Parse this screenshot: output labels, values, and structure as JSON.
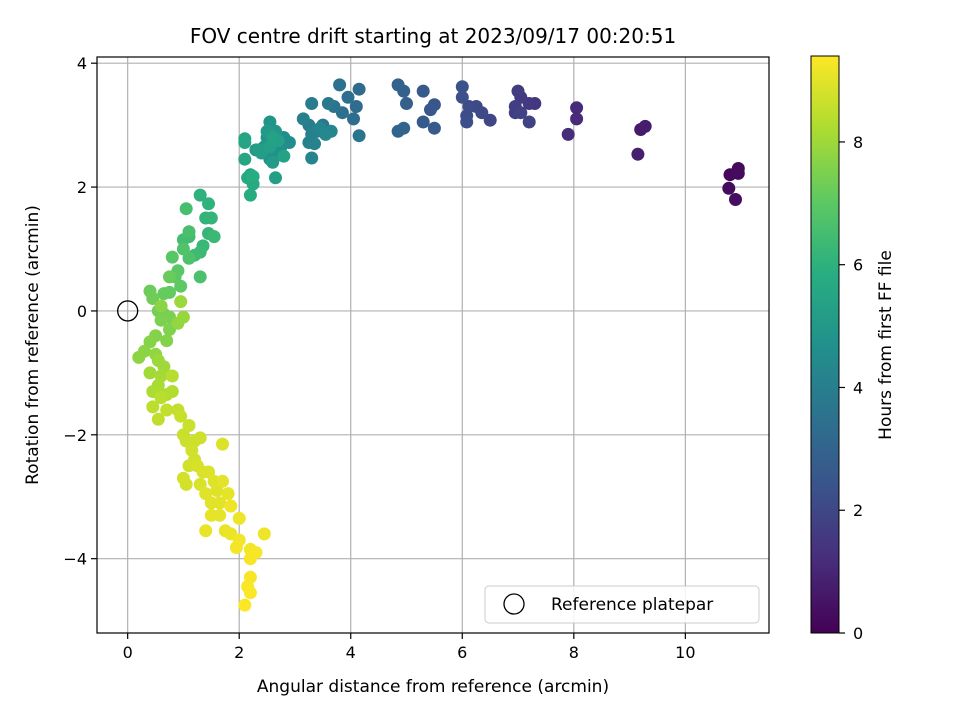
{
  "chart_data": {
    "type": "scatter",
    "title": "FOV centre drift starting at 2023/09/17 00:20:51",
    "xlabel": "Angular distance from reference (arcmin)",
    "ylabel": "Rotation from reference (arcmin)",
    "xlim": [
      -0.55,
      11.5
    ],
    "ylim": [
      -5.2,
      4.1
    ],
    "xticks": [
      "0",
      "2",
      "4",
      "6",
      "8",
      "10"
    ],
    "xtick_values": [
      0,
      2,
      4,
      6,
      8,
      10
    ],
    "yticks": [
      "−4",
      "−2",
      "0",
      "2",
      "4"
    ],
    "ytick_values": [
      -4,
      -2,
      0,
      2,
      4
    ],
    "grid": true,
    "colormap": "viridis",
    "colorbar": {
      "label": "Hours from first FF file",
      "range": [
        0,
        9.4
      ],
      "ticks": [
        "0",
        "2",
        "4",
        "6",
        "8"
      ],
      "tick_values": [
        0,
        2,
        4,
        6,
        8
      ]
    },
    "reference_point": {
      "x": 0,
      "y": 0,
      "label": "Reference platepar"
    },
    "legend": {
      "placement": "lower-right",
      "entries": [
        "Reference platepar"
      ]
    },
    "points": [
      [
        10.8,
        2.2,
        0.2
      ],
      [
        10.95,
        2.3,
        0.25
      ],
      [
        10.95,
        2.22,
        0.28
      ],
      [
        10.78,
        1.98,
        0.3
      ],
      [
        10.9,
        1.8,
        0.35
      ],
      [
        9.2,
        2.93,
        0.7
      ],
      [
        9.28,
        2.98,
        0.75
      ],
      [
        9.15,
        2.53,
        0.8
      ],
      [
        8.05,
        3.28,
        1.1
      ],
      [
        8.05,
        3.1,
        1.15
      ],
      [
        7.9,
        2.85,
        1.2
      ],
      [
        7.3,
        3.35,
        1.5
      ],
      [
        7.2,
        3.35,
        1.55
      ],
      [
        7.05,
        3.45,
        1.6
      ],
      [
        7.0,
        3.55,
        1.65
      ],
      [
        6.95,
        3.3,
        1.7
      ],
      [
        6.95,
        3.2,
        1.75
      ],
      [
        7.05,
        3.2,
        1.8
      ],
      [
        7.2,
        3.05,
        1.85
      ],
      [
        6.5,
        3.08,
        2.0
      ],
      [
        6.35,
        3.2,
        2.05
      ],
      [
        6.25,
        3.3,
        2.1
      ],
      [
        6.12,
        3.3,
        2.15
      ],
      [
        6.08,
        3.15,
        2.2
      ],
      [
        6.08,
        3.05,
        2.25
      ],
      [
        6.0,
        3.45,
        2.3
      ],
      [
        6.0,
        3.62,
        2.35
      ],
      [
        5.5,
        3.33,
        2.5
      ],
      [
        5.43,
        3.25,
        2.55
      ],
      [
        5.3,
        3.55,
        2.6
      ],
      [
        5.3,
        3.05,
        2.65
      ],
      [
        5.5,
        2.95,
        2.7
      ],
      [
        5.0,
        3.35,
        2.85
      ],
      [
        4.95,
        3.55,
        2.9
      ],
      [
        4.85,
        3.65,
        2.95
      ],
      [
        4.95,
        2.95,
        3.0
      ],
      [
        4.85,
        2.9,
        3.05
      ],
      [
        4.15,
        3.58,
        3.25
      ],
      [
        4.1,
        3.3,
        3.3
      ],
      [
        4.05,
        3.1,
        3.35
      ],
      [
        3.95,
        3.45,
        3.4
      ],
      [
        3.85,
        3.2,
        3.45
      ],
      [
        3.8,
        3.65,
        3.5
      ],
      [
        3.7,
        3.3,
        3.55
      ],
      [
        4.15,
        2.83,
        3.6
      ],
      [
        3.6,
        3.35,
        3.75
      ],
      [
        3.5,
        3.0,
        3.8
      ],
      [
        3.4,
        2.9,
        3.85
      ],
      [
        3.3,
        3.35,
        3.9
      ],
      [
        3.25,
        3.0,
        3.95
      ],
      [
        3.15,
        3.1,
        4.0
      ],
      [
        3.3,
        2.85,
        4.05
      ],
      [
        3.25,
        2.72,
        4.1
      ],
      [
        3.35,
        2.7,
        4.15
      ],
      [
        3.3,
        2.47,
        4.2
      ],
      [
        3.45,
        2.95,
        4.25
      ],
      [
        3.65,
        2.9,
        4.3
      ],
      [
        3.55,
        2.85,
        4.35
      ],
      [
        2.9,
        2.72,
        4.55
      ],
      [
        2.8,
        2.8,
        4.6
      ],
      [
        2.75,
        2.65,
        4.65
      ],
      [
        2.65,
        2.5,
        4.7
      ],
      [
        2.55,
        2.45,
        4.75
      ],
      [
        2.5,
        2.8,
        4.8
      ],
      [
        2.55,
        3.05,
        4.85
      ],
      [
        2.65,
        2.9,
        4.9
      ],
      [
        2.45,
        2.65,
        4.95
      ],
      [
        2.3,
        2.6,
        5.0
      ],
      [
        2.5,
        2.9,
        5.05
      ],
      [
        2.6,
        2.4,
        5.1
      ],
      [
        2.4,
        2.55,
        5.15
      ],
      [
        2.35,
        2.6,
        5.2
      ],
      [
        2.65,
        2.15,
        5.25
      ],
      [
        2.55,
        2.65,
        5.3
      ],
      [
        2.7,
        2.75,
        5.32
      ],
      [
        2.6,
        2.8,
        5.34
      ],
      [
        2.8,
        2.5,
        5.36
      ],
      [
        2.1,
        2.78,
        5.45
      ],
      [
        2.1,
        2.72,
        5.5
      ],
      [
        2.1,
        2.45,
        5.55
      ],
      [
        2.2,
        2.2,
        5.6
      ],
      [
        2.15,
        2.15,
        5.65
      ],
      [
        2.25,
        2.05,
        5.7
      ],
      [
        2.2,
        1.87,
        5.75
      ],
      [
        2.25,
        2.17,
        5.8
      ],
      [
        1.3,
        1.87,
        6.0
      ],
      [
        1.45,
        1.73,
        6.05
      ],
      [
        1.4,
        1.5,
        6.1
      ],
      [
        1.5,
        1.5,
        6.15
      ],
      [
        1.45,
        1.25,
        6.2
      ],
      [
        1.35,
        1.05,
        6.25
      ],
      [
        1.55,
        1.2,
        6.3
      ],
      [
        1.3,
        0.95,
        6.35
      ],
      [
        1.2,
        0.9,
        6.4
      ],
      [
        1.1,
        1.2,
        6.45
      ],
      [
        1.0,
        1.15,
        6.5
      ],
      [
        1.05,
        1.65,
        6.55
      ],
      [
        1.1,
        1.28,
        6.6
      ],
      [
        1.3,
        0.55,
        6.65
      ],
      [
        1.1,
        0.85,
        6.7
      ],
      [
        1.0,
        1.0,
        6.75
      ],
      [
        0.8,
        0.87,
        6.9
      ],
      [
        0.9,
        0.65,
        6.95
      ],
      [
        0.85,
        0.55,
        7.0
      ],
      [
        0.95,
        0.4,
        7.05
      ],
      [
        0.75,
        0.3,
        7.1
      ],
      [
        0.65,
        0.28,
        7.15
      ],
      [
        0.75,
        0.55,
        7.2
      ],
      [
        0.4,
        0.32,
        7.25
      ],
      [
        0.45,
        0.2,
        7.3
      ],
      [
        0.55,
        0.0,
        7.35
      ],
      [
        0.65,
        -0.05,
        7.4
      ],
      [
        0.75,
        -0.1,
        7.45
      ],
      [
        0.6,
        -0.15,
        7.5
      ],
      [
        0.75,
        -0.3,
        7.55
      ],
      [
        0.5,
        -0.4,
        7.6
      ],
      [
        0.4,
        -0.5,
        7.65
      ],
      [
        0.3,
        -0.65,
        7.7
      ],
      [
        0.2,
        -0.75,
        7.75
      ],
      [
        0.5,
        -0.7,
        7.8
      ],
      [
        0.9,
        -0.2,
        7.85
      ],
      [
        1.0,
        -0.1,
        7.9
      ],
      [
        0.95,
        0.15,
        7.95
      ],
      [
        0.6,
        0.08,
        7.7
      ],
      [
        0.7,
        -0.48,
        7.6
      ],
      [
        0.55,
        -0.8,
        7.95
      ],
      [
        0.65,
        -0.9,
        8.0
      ],
      [
        0.4,
        -1.0,
        8.05
      ],
      [
        0.6,
        -1.05,
        8.1
      ],
      [
        0.55,
        -1.2,
        8.15
      ],
      [
        0.45,
        -1.3,
        8.2
      ],
      [
        0.7,
        -1.35,
        8.25
      ],
      [
        0.8,
        -1.3,
        8.3
      ],
      [
        0.8,
        -1.05,
        8.35
      ],
      [
        0.6,
        -1.4,
        8.4
      ],
      [
        0.45,
        -1.55,
        8.45
      ],
      [
        0.55,
        -1.75,
        8.5
      ],
      [
        0.7,
        -1.6,
        8.55
      ],
      [
        0.9,
        -1.6,
        8.55
      ],
      [
        0.95,
        -1.7,
        8.6
      ],
      [
        1.0,
        -2.0,
        8.62
      ],
      [
        1.1,
        -1.85,
        8.64
      ],
      [
        1.05,
        -2.1,
        8.66
      ],
      [
        1.2,
        -2.1,
        8.68
      ],
      [
        1.3,
        -2.05,
        8.7
      ],
      [
        1.15,
        -2.25,
        8.72
      ],
      [
        1.2,
        -2.4,
        8.74
      ],
      [
        1.1,
        -2.5,
        8.76
      ],
      [
        1.0,
        -2.7,
        8.78
      ],
      [
        1.05,
        -2.8,
        8.8
      ],
      [
        1.25,
        -2.5,
        8.82
      ],
      [
        1.3,
        -2.8,
        8.84
      ],
      [
        1.35,
        -2.6,
        8.86
      ],
      [
        1.7,
        -2.15,
        8.88
      ],
      [
        1.45,
        -2.6,
        8.9
      ],
      [
        1.55,
        -2.75,
        8.92
      ],
      [
        1.6,
        -2.9,
        8.94
      ],
      [
        1.4,
        -2.95,
        8.96
      ],
      [
        1.5,
        -3.1,
        8.98
      ],
      [
        1.65,
        -3.1,
        9.0
      ],
      [
        1.7,
        -2.75,
        9.02
      ],
      [
        1.8,
        -2.95,
        9.04
      ],
      [
        1.65,
        -3.3,
        9.06
      ],
      [
        1.5,
        -3.3,
        9.08
      ],
      [
        1.4,
        -3.55,
        9.1
      ],
      [
        1.75,
        -3.55,
        9.12
      ],
      [
        1.85,
        -3.6,
        9.14
      ],
      [
        2.0,
        -3.35,
        9.16
      ],
      [
        1.85,
        -3.15,
        9.18
      ],
      [
        2.45,
        -3.6,
        9.2
      ],
      [
        2.0,
        -3.7,
        9.22
      ],
      [
        1.95,
        -3.82,
        9.24
      ],
      [
        2.2,
        -3.85,
        9.26
      ],
      [
        2.3,
        -3.9,
        9.28
      ],
      [
        2.2,
        -4.0,
        9.3
      ],
      [
        2.2,
        -4.3,
        9.32
      ],
      [
        2.15,
        -4.45,
        9.34
      ],
      [
        2.2,
        -4.55,
        9.36
      ],
      [
        2.1,
        -4.75,
        9.38
      ]
    ]
  }
}
